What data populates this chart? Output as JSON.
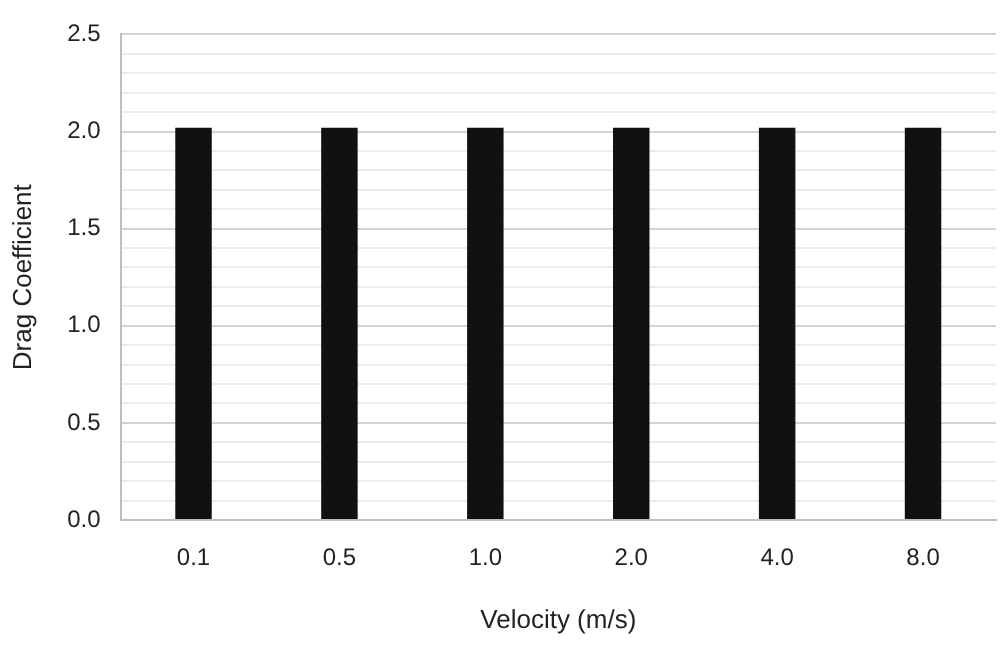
{
  "chart_data": {
    "type": "bar",
    "xlabel": "Velocity (m/s)",
    "ylabel": "Drag Coefficient",
    "categories": [
      "0.1",
      "0.5",
      "1.0",
      "2.0",
      "4.0",
      "8.0"
    ],
    "values": [
      2.02,
      2.02,
      2.02,
      2.02,
      2.02,
      2.02
    ],
    "color": "#111111",
    "ylim": [
      0,
      2.5
    ],
    "yticks": [
      {
        "value": 0,
        "label": "0.0"
      },
      {
        "value": 0.1,
        "label": null
      },
      {
        "value": 0.2,
        "label": null
      },
      {
        "value": 0.3,
        "label": null
      },
      {
        "value": 0.4,
        "label": null
      },
      {
        "value": 0.5,
        "label": "0.5"
      },
      {
        "value": 0.6,
        "label": null
      },
      {
        "value": 0.7,
        "label": null
      },
      {
        "value": 0.8,
        "label": null
      },
      {
        "value": 0.9,
        "label": null
      },
      {
        "value": 1,
        "label": "1.0"
      },
      {
        "value": 1.1,
        "label": null
      },
      {
        "value": 1.2,
        "label": null
      },
      {
        "value": 1.3,
        "label": null
      },
      {
        "value": 1.4,
        "label": null
      },
      {
        "value": 1.5,
        "label": "1.5"
      },
      {
        "value": 1.6,
        "label": null
      },
      {
        "value": 1.7,
        "label": null
      },
      {
        "value": 1.8,
        "label": null
      },
      {
        "value": 1.9,
        "label": null
      },
      {
        "value": 2,
        "label": "2.0"
      },
      {
        "value": 2.1,
        "label": null
      },
      {
        "value": 2.2,
        "label": null
      },
      {
        "value": 2.3,
        "label": null
      },
      {
        "value": 2.4,
        "label": null
      },
      {
        "value": 2.5,
        "label": "2.5"
      }
    ],
    "grid": "y"
  }
}
